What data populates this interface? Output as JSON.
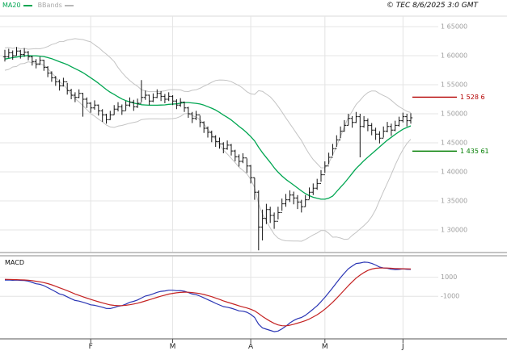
{
  "header": {
    "legend": [
      {
        "label": "MA20",
        "color": "#00a651"
      },
      {
        "label": "BBands",
        "color": "#b8b8b8"
      }
    ],
    "copyright": "© TEC 8/6/2025 3:0 GMT"
  },
  "price_panel": {
    "y_ticks": [
      {
        "label": "1 65000",
        "value": 165000
      },
      {
        "label": "1 60000",
        "value": 160000
      },
      {
        "label": "1 55000",
        "value": 155000
      },
      {
        "label": "1 50000",
        "value": 150000
      },
      {
        "label": "1 45000",
        "value": 145000
      },
      {
        "label": "1 40000",
        "value": 140000
      },
      {
        "label": "1 35000",
        "value": 135000
      },
      {
        "label": "1 30000",
        "value": 130000
      }
    ],
    "markers": [
      {
        "name": "resistance",
        "label": "1 528 6",
        "value": 152860,
        "color": "#b40000"
      },
      {
        "name": "support",
        "label": "1 435 61",
        "value": 143561,
        "color": "#007d00"
      }
    ]
  },
  "macd_panel": {
    "label": "MACD",
    "y_ticks": [
      {
        "label": "1000",
        "value": 1000
      },
      {
        "label": "-1000",
        "value": -1000
      }
    ],
    "line_color": "#2a35b4",
    "signal_color": "#c42222",
    "params": {
      "fast": 12,
      "slow": 26,
      "signal": 9
    }
  },
  "x_axis": {
    "ticks": [
      {
        "label": "F",
        "index": 22
      },
      {
        "label": "M",
        "index": 43
      },
      {
        "label": "A",
        "index": 63
      },
      {
        "label": "M",
        "index": 82
      },
      {
        "label": "J",
        "index": 102
      }
    ]
  },
  "chart_data": {
    "type": "candlestick",
    "title": "",
    "ylim": [
      126250,
      166800
    ],
    "candle_color": "#141414",
    "overlays": [
      {
        "name": "MA20",
        "window": 20,
        "color": "#00a651"
      },
      {
        "name": "Bollinger",
        "window": 20,
        "stdev": 2,
        "color": "#c4c4c4"
      }
    ],
    "pre_closes": [
      156500,
      158200,
      157300,
      158800,
      157600,
      159300,
      158400,
      159900,
      158800,
      160400,
      159300,
      160600,
      159700,
      160900,
      159900,
      160300,
      159200,
      160500,
      159600,
      159800
    ],
    "bars_hlc": [
      [
        161000,
        159000,
        159800
      ],
      [
        161200,
        159600,
        160500
      ],
      [
        160900,
        159300,
        160000
      ],
      [
        161500,
        160000,
        160800
      ],
      [
        161000,
        159500,
        160200
      ],
      [
        161300,
        159800,
        160600
      ],
      [
        160800,
        159200,
        159800
      ],
      [
        160000,
        158300,
        159000
      ],
      [
        159400,
        157800,
        158500
      ],
      [
        159800,
        158400,
        159200
      ],
      [
        159300,
        157400,
        158000
      ],
      [
        158200,
        156300,
        157000
      ],
      [
        157300,
        155500,
        156200
      ],
      [
        156500,
        154800,
        155500
      ],
      [
        155900,
        154000,
        154800
      ],
      [
        156200,
        154700,
        155500
      ],
      [
        155300,
        153300,
        154000
      ],
      [
        154300,
        152500,
        153200
      ],
      [
        153700,
        152000,
        152800
      ],
      [
        154200,
        152700,
        153500
      ],
      [
        153600,
        149500,
        152500
      ],
      [
        152800,
        151000,
        151800
      ],
      [
        152000,
        150200,
        151000
      ],
      [
        152300,
        150700,
        151500
      ],
      [
        151600,
        149700,
        150500
      ],
      [
        150800,
        148600,
        149800
      ],
      [
        150000,
        148300,
        149000
      ],
      [
        150500,
        148900,
        149800
      ],
      [
        151500,
        149800,
        150800
      ],
      [
        152000,
        150400,
        151200
      ],
      [
        151600,
        149800,
        150500
      ],
      [
        152200,
        150600,
        151500
      ],
      [
        152800,
        151200,
        152000
      ],
      [
        152400,
        150500,
        151200
      ],
      [
        152600,
        151000,
        151800
      ],
      [
        155800,
        152000,
        152800
      ],
      [
        154000,
        152400,
        153200
      ],
      [
        153300,
        151500,
        152200
      ],
      [
        153500,
        152000,
        152800
      ],
      [
        154200,
        152700,
        153500
      ],
      [
        153900,
        152200,
        153000
      ],
      [
        153400,
        151800,
        152500
      ],
      [
        153700,
        152200,
        153000
      ],
      [
        153200,
        151500,
        152200
      ],
      [
        152500,
        150800,
        151500
      ],
      [
        152700,
        151200,
        152000
      ],
      [
        152100,
        150300,
        151000
      ],
      [
        151200,
        149300,
        150000
      ],
      [
        150300,
        148400,
        149200
      ],
      [
        150500,
        148900,
        149800
      ],
      [
        149700,
        147700,
        148500
      ],
      [
        148700,
        146700,
        147500
      ],
      [
        147800,
        145900,
        146800
      ],
      [
        147100,
        145100,
        146000
      ],
      [
        146300,
        144300,
        145200
      ],
      [
        145900,
        144000,
        144800
      ],
      [
        145100,
        143200,
        144000
      ],
      [
        145400,
        143800,
        144600
      ],
      [
        144800,
        142800,
        143600
      ],
      [
        143800,
        141800,
        142600
      ],
      [
        143000,
        140900,
        141800
      ],
      [
        143200,
        141500,
        142400
      ],
      [
        142300,
        139800,
        141000
      ],
      [
        141200,
        138000,
        139000
      ],
      [
        139000,
        135200,
        136500
      ],
      [
        136800,
        126500,
        130500
      ],
      [
        133500,
        128200,
        132000
      ],
      [
        134500,
        131000,
        133500
      ],
      [
        134000,
        131200,
        132500
      ],
      [
        133000,
        130200,
        131500
      ],
      [
        134000,
        131800,
        133000
      ],
      [
        135400,
        133300,
        134500
      ],
      [
        136200,
        134000,
        135200
      ],
      [
        136800,
        134800,
        136000
      ],
      [
        136600,
        134400,
        135500
      ],
      [
        136000,
        133600,
        134800
      ],
      [
        135200,
        133000,
        134000
      ],
      [
        136000,
        134000,
        135200
      ],
      [
        137300,
        135300,
        136500
      ],
      [
        138000,
        136000,
        137200
      ],
      [
        138800,
        136900,
        138000
      ],
      [
        140300,
        138300,
        139500
      ],
      [
        141800,
        139800,
        141000
      ],
      [
        143300,
        141300,
        142500
      ],
      [
        144800,
        142800,
        144000
      ],
      [
        146300,
        144300,
        145500
      ],
      [
        147800,
        145800,
        147000
      ],
      [
        148900,
        146900,
        148000
      ],
      [
        150000,
        148000,
        149200
      ],
      [
        149600,
        147600,
        148500
      ],
      [
        150300,
        148400,
        149500
      ],
      [
        150000,
        142500,
        147800
      ],
      [
        149600,
        147600,
        148800
      ],
      [
        149200,
        147000,
        148000
      ],
      [
        148400,
        146300,
        147200
      ],
      [
        147600,
        145500,
        146500
      ],
      [
        147000,
        144900,
        145800
      ],
      [
        147800,
        145900,
        147000
      ],
      [
        148600,
        146800,
        147800
      ],
      [
        148300,
        146200,
        147200
      ],
      [
        148800,
        147000,
        148000
      ],
      [
        149500,
        147800,
        148800
      ],
      [
        150200,
        148500,
        149500
      ],
      [
        150000,
        147800,
        148800
      ],
      [
        150100,
        148300,
        149300
      ]
    ]
  }
}
